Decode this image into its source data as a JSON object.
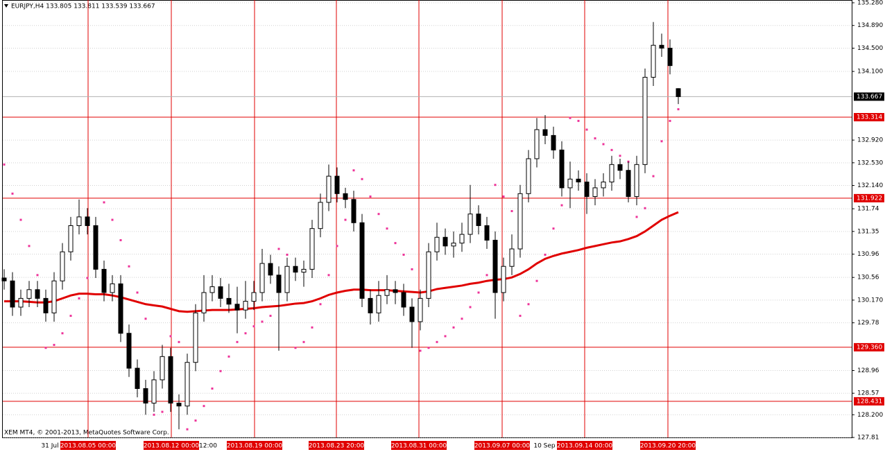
{
  "chart_data": {
    "type": "candlestick",
    "title": "EURJPY,H4  133.805 133.811 133.539 133.667",
    "footer": "XEM MT4, © 2001-2013, MetaQuotes Software Corp.",
    "ylim": [
      127.81,
      135.28
    ],
    "yticks": [
      {
        "value": 135.28,
        "label": "135.280"
      },
      {
        "value": 134.89,
        "label": "134.890"
      },
      {
        "value": 134.5,
        "label": "134.500"
      },
      {
        "value": 134.1,
        "label": "134.100"
      },
      {
        "value": 132.92,
        "label": "132.920"
      },
      {
        "value": 132.53,
        "label": "132.530"
      },
      {
        "value": 132.14,
        "label": "132.140"
      },
      131.74,
      131.35,
      130.96,
      130.56,
      {
        "value": 130.17,
        "label": "130.170"
      },
      129.78,
      128.96,
      128.57,
      {
        "value": 128.2,
        "label": "128.200"
      },
      127.81
    ],
    "grid": true,
    "candle_up_color": "#ffffff",
    "candle_down_color": "#000000",
    "ohlc": [
      [
        130.55,
        130.7,
        130.35,
        130.5
      ],
      [
        130.5,
        130.65,
        129.9,
        130.05
      ],
      [
        130.05,
        130.35,
        129.9,
        130.2
      ],
      [
        130.2,
        130.5,
        130.05,
        130.35
      ],
      [
        130.35,
        130.5,
        130.05,
        130.2
      ],
      [
        130.2,
        130.35,
        129.8,
        129.95
      ],
      [
        129.95,
        130.65,
        129.8,
        130.5
      ],
      [
        130.5,
        131.15,
        130.35,
        131.0
      ],
      [
        131.0,
        131.6,
        130.85,
        131.45
      ],
      [
        131.45,
        131.9,
        131.3,
        131.6
      ],
      [
        131.6,
        131.75,
        131.3,
        131.45
      ],
      [
        131.45,
        131.6,
        130.55,
        130.7
      ],
      [
        130.7,
        130.85,
        130.15,
        130.3
      ],
      [
        130.3,
        130.6,
        130.15,
        130.45
      ],
      [
        130.45,
        130.6,
        129.45,
        129.6
      ],
      [
        129.6,
        129.75,
        128.85,
        129.0
      ],
      [
        129.0,
        129.15,
        128.5,
        128.65
      ],
      [
        128.65,
        128.8,
        128.2,
        128.4
      ],
      [
        128.4,
        128.95,
        128.25,
        128.8
      ],
      [
        128.8,
        129.4,
        128.65,
        129.2
      ],
      [
        129.2,
        129.35,
        128.25,
        128.4
      ],
      [
        128.4,
        128.55,
        127.95,
        128.35
      ],
      [
        128.35,
        129.25,
        128.2,
        129.1
      ],
      [
        129.1,
        130.1,
        128.95,
        129.95
      ],
      [
        129.95,
        130.6,
        129.8,
        130.3
      ],
      [
        130.3,
        130.6,
        130.15,
        130.4
      ],
      [
        130.4,
        130.55,
        130.05,
        130.2
      ],
      [
        130.2,
        130.45,
        129.95,
        130.1
      ],
      [
        130.1,
        130.4,
        129.6,
        130.0
      ],
      [
        130.0,
        130.5,
        129.85,
        130.15
      ],
      [
        130.15,
        130.5,
        130.0,
        130.3
      ],
      [
        130.3,
        131.05,
        130.15,
        130.8
      ],
      [
        130.8,
        130.95,
        130.45,
        130.6
      ],
      [
        130.6,
        130.75,
        129.3,
        130.3
      ],
      [
        130.3,
        130.9,
        130.15,
        130.75
      ],
      [
        130.75,
        130.9,
        130.5,
        130.65
      ],
      [
        130.65,
        130.85,
        130.4,
        130.7
      ],
      [
        130.7,
        131.55,
        130.55,
        131.4
      ],
      [
        131.4,
        132.0,
        131.25,
        131.85
      ],
      [
        131.85,
        132.5,
        131.7,
        132.3
      ],
      [
        132.3,
        132.45,
        131.85,
        132.0
      ],
      [
        132.0,
        132.1,
        131.75,
        131.9
      ],
      [
        131.9,
        132.05,
        131.35,
        131.5
      ],
      [
        131.5,
        131.65,
        130.05,
        130.2
      ],
      [
        130.2,
        130.35,
        129.75,
        129.95
      ],
      [
        129.95,
        130.5,
        129.8,
        130.25
      ],
      [
        130.25,
        130.6,
        130.1,
        130.35
      ],
      [
        130.35,
        130.5,
        130.1,
        130.3
      ],
      [
        130.3,
        130.45,
        129.9,
        130.05
      ],
      [
        130.05,
        130.2,
        129.35,
        129.8
      ],
      [
        129.8,
        130.35,
        129.65,
        130.2
      ],
      [
        130.2,
        131.15,
        130.05,
        131.0
      ],
      [
        131.0,
        131.5,
        130.85,
        131.25
      ],
      [
        131.25,
        131.4,
        130.95,
        131.1
      ],
      [
        131.1,
        131.35,
        130.9,
        131.15
      ],
      [
        131.15,
        131.5,
        131.0,
        131.3
      ],
      [
        131.3,
        132.15,
        131.15,
        131.65
      ],
      [
        131.65,
        131.8,
        131.3,
        131.45
      ],
      [
        131.45,
        131.6,
        131.05,
        131.2
      ],
      [
        131.2,
        131.35,
        129.85,
        130.3
      ],
      [
        130.3,
        130.9,
        130.15,
        130.75
      ],
      [
        130.75,
        131.3,
        130.6,
        131.05
      ],
      [
        131.05,
        132.15,
        130.9,
        132.0
      ],
      [
        132.0,
        132.75,
        131.85,
        132.6
      ],
      [
        132.6,
        133.3,
        132.45,
        133.1
      ],
      [
        133.1,
        133.35,
        132.85,
        133.0
      ],
      [
        133.0,
        133.15,
        132.6,
        132.75
      ],
      [
        132.75,
        132.9,
        131.95,
        132.1
      ],
      [
        132.1,
        132.55,
        131.75,
        132.25
      ],
      [
        132.25,
        132.4,
        132.05,
        132.2
      ],
      [
        132.2,
        132.35,
        131.65,
        131.95
      ],
      [
        131.95,
        132.25,
        131.8,
        132.1
      ],
      [
        132.1,
        132.35,
        131.95,
        132.2
      ],
      [
        132.2,
        132.65,
        132.05,
        132.5
      ],
      [
        132.5,
        132.6,
        132.25,
        132.4
      ],
      [
        132.4,
        132.55,
        131.85,
        131.95
      ],
      [
        131.95,
        132.65,
        131.8,
        132.5
      ],
      [
        132.5,
        134.15,
        132.35,
        134.0
      ],
      [
        134.0,
        134.95,
        133.85,
        134.55
      ],
      [
        134.55,
        134.75,
        134.35,
        134.5
      ],
      [
        134.5,
        134.65,
        134.05,
        134.2
      ],
      [
        133.805,
        133.811,
        133.539,
        133.667
      ]
    ],
    "ma": {
      "color": "#e00000",
      "values": [
        130.15,
        130.15,
        130.15,
        130.14,
        130.13,
        130.13,
        130.15,
        130.2,
        130.25,
        130.28,
        130.28,
        130.27,
        130.27,
        130.25,
        130.22,
        130.18,
        130.14,
        130.1,
        130.08,
        130.06,
        130.02,
        129.98,
        129.97,
        129.98,
        129.99,
        130.0,
        130.0,
        130.0,
        130.01,
        130.02,
        130.03,
        130.05,
        130.06,
        130.07,
        130.09,
        130.11,
        130.12,
        130.15,
        130.2,
        130.26,
        130.3,
        130.33,
        130.35,
        130.35,
        130.34,
        130.34,
        130.34,
        130.33,
        130.32,
        130.31,
        130.3,
        130.32,
        130.36,
        130.38,
        130.4,
        130.42,
        130.45,
        130.47,
        130.5,
        130.52,
        130.53,
        130.56,
        130.62,
        130.7,
        130.8,
        130.88,
        130.93,
        130.97,
        131.0,
        131.03,
        131.07,
        131.1,
        131.13,
        131.16,
        131.18,
        131.22,
        131.27,
        131.35,
        131.45,
        131.55,
        131.62,
        131.68
      ]
    },
    "sar": {
      "color": "#ee3399",
      "values": [
        132.5,
        132.0,
        131.55,
        131.1,
        130.6,
        129.35,
        129.4,
        129.6,
        129.9,
        130.2,
        130.55,
        130.9,
        131.85,
        131.55,
        131.2,
        130.75,
        130.3,
        129.85,
        128.2,
        128.25,
        129.55,
        129.45,
        127.95,
        128.1,
        128.35,
        128.65,
        128.95,
        129.2,
        129.45,
        129.6,
        129.72,
        129.8,
        129.9,
        131.05,
        130.95,
        129.35,
        129.45,
        129.7,
        130.1,
        130.6,
        131.1,
        131.55,
        132.4,
        132.25,
        131.95,
        131.65,
        131.4,
        131.15,
        130.95,
        130.7,
        129.3,
        129.35,
        129.45,
        129.55,
        129.7,
        129.85,
        130.05,
        130.3,
        130.6,
        132.15,
        131.95,
        131.7,
        129.9,
        130.1,
        130.5,
        130.95,
        131.4,
        131.8,
        133.3,
        133.25,
        133.1,
        132.95,
        132.85,
        132.75,
        132.65,
        132.55,
        131.6,
        131.75,
        132.3,
        132.9,
        133.25,
        133.45
      ]
    },
    "levels": [
      133.314,
      131.922,
      {
        "value": 129.36,
        "label": "129.360"
      },
      128.431
    ],
    "level_color": "#e00000",
    "current_price": 133.667,
    "vline_labels": [
      "2013.08.05 00:00",
      "2013.08.12 00:00",
      "2013.08.19 00:00",
      "2013.08.23 20:00",
      "2013.08.31 00:00",
      "2013.09.07 00:00",
      "2013.09.14 00:00",
      "2013.09.20 20:00"
    ],
    "x_labels": [
      "31 Jul",
      "12:00",
      "10 Sep"
    ]
  }
}
